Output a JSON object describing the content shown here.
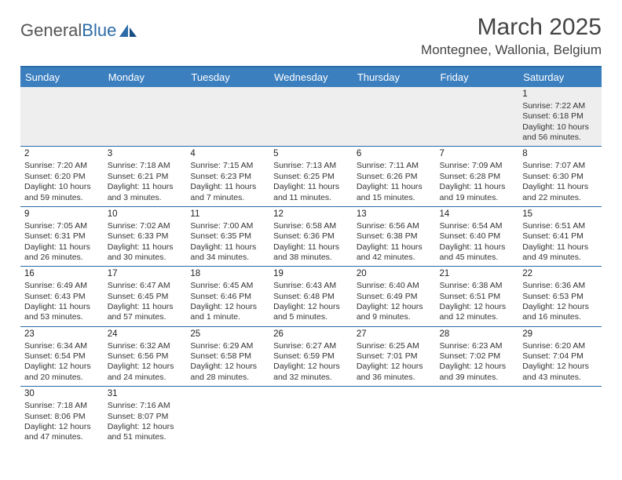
{
  "logo": {
    "text1": "General",
    "text2": "Blue"
  },
  "title": "March 2025",
  "location": "Montegnee, Wallonia, Belgium",
  "weekdays": [
    "Sunday",
    "Monday",
    "Tuesday",
    "Wednesday",
    "Thursday",
    "Friday",
    "Saturday"
  ],
  "colors": {
    "header_bg": "#3b7fbf",
    "border": "#2d6ca8",
    "blank_bg": "#eeeeee"
  },
  "weeks": [
    [
      null,
      null,
      null,
      null,
      null,
      null,
      {
        "d": "1",
        "sr": "Sunrise: 7:22 AM",
        "ss": "Sunset: 6:18 PM",
        "dl": "Daylight: 10 hours and 56 minutes."
      }
    ],
    [
      {
        "d": "2",
        "sr": "Sunrise: 7:20 AM",
        "ss": "Sunset: 6:20 PM",
        "dl": "Daylight: 10 hours and 59 minutes."
      },
      {
        "d": "3",
        "sr": "Sunrise: 7:18 AM",
        "ss": "Sunset: 6:21 PM",
        "dl": "Daylight: 11 hours and 3 minutes."
      },
      {
        "d": "4",
        "sr": "Sunrise: 7:15 AM",
        "ss": "Sunset: 6:23 PM",
        "dl": "Daylight: 11 hours and 7 minutes."
      },
      {
        "d": "5",
        "sr": "Sunrise: 7:13 AM",
        "ss": "Sunset: 6:25 PM",
        "dl": "Daylight: 11 hours and 11 minutes."
      },
      {
        "d": "6",
        "sr": "Sunrise: 7:11 AM",
        "ss": "Sunset: 6:26 PM",
        "dl": "Daylight: 11 hours and 15 minutes."
      },
      {
        "d": "7",
        "sr": "Sunrise: 7:09 AM",
        "ss": "Sunset: 6:28 PM",
        "dl": "Daylight: 11 hours and 19 minutes."
      },
      {
        "d": "8",
        "sr": "Sunrise: 7:07 AM",
        "ss": "Sunset: 6:30 PM",
        "dl": "Daylight: 11 hours and 22 minutes."
      }
    ],
    [
      {
        "d": "9",
        "sr": "Sunrise: 7:05 AM",
        "ss": "Sunset: 6:31 PM",
        "dl": "Daylight: 11 hours and 26 minutes."
      },
      {
        "d": "10",
        "sr": "Sunrise: 7:02 AM",
        "ss": "Sunset: 6:33 PM",
        "dl": "Daylight: 11 hours and 30 minutes."
      },
      {
        "d": "11",
        "sr": "Sunrise: 7:00 AM",
        "ss": "Sunset: 6:35 PM",
        "dl": "Daylight: 11 hours and 34 minutes."
      },
      {
        "d": "12",
        "sr": "Sunrise: 6:58 AM",
        "ss": "Sunset: 6:36 PM",
        "dl": "Daylight: 11 hours and 38 minutes."
      },
      {
        "d": "13",
        "sr": "Sunrise: 6:56 AM",
        "ss": "Sunset: 6:38 PM",
        "dl": "Daylight: 11 hours and 42 minutes."
      },
      {
        "d": "14",
        "sr": "Sunrise: 6:54 AM",
        "ss": "Sunset: 6:40 PM",
        "dl": "Daylight: 11 hours and 45 minutes."
      },
      {
        "d": "15",
        "sr": "Sunrise: 6:51 AM",
        "ss": "Sunset: 6:41 PM",
        "dl": "Daylight: 11 hours and 49 minutes."
      }
    ],
    [
      {
        "d": "16",
        "sr": "Sunrise: 6:49 AM",
        "ss": "Sunset: 6:43 PM",
        "dl": "Daylight: 11 hours and 53 minutes."
      },
      {
        "d": "17",
        "sr": "Sunrise: 6:47 AM",
        "ss": "Sunset: 6:45 PM",
        "dl": "Daylight: 11 hours and 57 minutes."
      },
      {
        "d": "18",
        "sr": "Sunrise: 6:45 AM",
        "ss": "Sunset: 6:46 PM",
        "dl": "Daylight: 12 hours and 1 minute."
      },
      {
        "d": "19",
        "sr": "Sunrise: 6:43 AM",
        "ss": "Sunset: 6:48 PM",
        "dl": "Daylight: 12 hours and 5 minutes."
      },
      {
        "d": "20",
        "sr": "Sunrise: 6:40 AM",
        "ss": "Sunset: 6:49 PM",
        "dl": "Daylight: 12 hours and 9 minutes."
      },
      {
        "d": "21",
        "sr": "Sunrise: 6:38 AM",
        "ss": "Sunset: 6:51 PM",
        "dl": "Daylight: 12 hours and 12 minutes."
      },
      {
        "d": "22",
        "sr": "Sunrise: 6:36 AM",
        "ss": "Sunset: 6:53 PM",
        "dl": "Daylight: 12 hours and 16 minutes."
      }
    ],
    [
      {
        "d": "23",
        "sr": "Sunrise: 6:34 AM",
        "ss": "Sunset: 6:54 PM",
        "dl": "Daylight: 12 hours and 20 minutes."
      },
      {
        "d": "24",
        "sr": "Sunrise: 6:32 AM",
        "ss": "Sunset: 6:56 PM",
        "dl": "Daylight: 12 hours and 24 minutes."
      },
      {
        "d": "25",
        "sr": "Sunrise: 6:29 AM",
        "ss": "Sunset: 6:58 PM",
        "dl": "Daylight: 12 hours and 28 minutes."
      },
      {
        "d": "26",
        "sr": "Sunrise: 6:27 AM",
        "ss": "Sunset: 6:59 PM",
        "dl": "Daylight: 12 hours and 32 minutes."
      },
      {
        "d": "27",
        "sr": "Sunrise: 6:25 AM",
        "ss": "Sunset: 7:01 PM",
        "dl": "Daylight: 12 hours and 36 minutes."
      },
      {
        "d": "28",
        "sr": "Sunrise: 6:23 AM",
        "ss": "Sunset: 7:02 PM",
        "dl": "Daylight: 12 hours and 39 minutes."
      },
      {
        "d": "29",
        "sr": "Sunrise: 6:20 AM",
        "ss": "Sunset: 7:04 PM",
        "dl": "Daylight: 12 hours and 43 minutes."
      }
    ],
    [
      {
        "d": "30",
        "sr": "Sunrise: 7:18 AM",
        "ss": "Sunset: 8:06 PM",
        "dl": "Daylight: 12 hours and 47 minutes."
      },
      {
        "d": "31",
        "sr": "Sunrise: 7:16 AM",
        "ss": "Sunset: 8:07 PM",
        "dl": "Daylight: 12 hours and 51 minutes."
      },
      null,
      null,
      null,
      null,
      null
    ]
  ]
}
